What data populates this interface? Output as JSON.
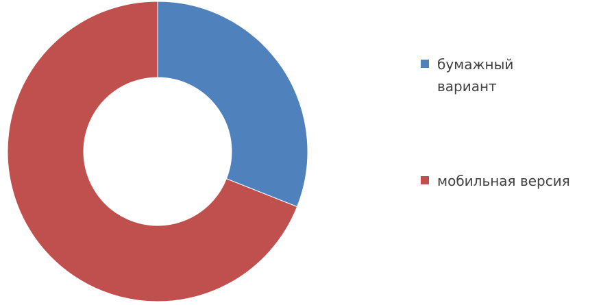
{
  "chart_data": {
    "type": "pie",
    "subtype": "donut",
    "title": "",
    "slices": [
      {
        "label": "бумажный вариант",
        "value": 31,
        "color": "#4F81BD"
      },
      {
        "label": "мобильная версия",
        "value": 69,
        "color": "#C0504D"
      }
    ],
    "legend_position": "right",
    "start_angle": "top, clockwise"
  }
}
